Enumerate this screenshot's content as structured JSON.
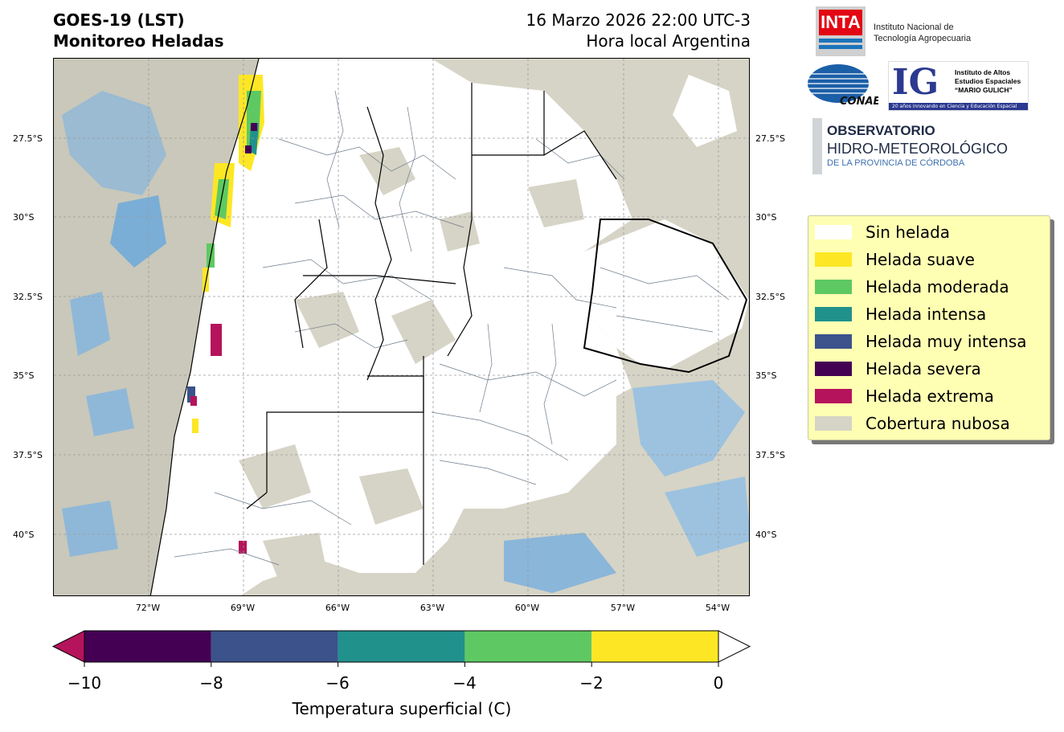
{
  "header": {
    "left_line1": "GOES-19 (LST)",
    "left_line2": "Monitoreo Heladas",
    "right_line1": "16 Marzo 2026 22:00 UTC-3",
    "right_line2": "Hora local Argentina"
  },
  "map": {
    "lat_ticks": [
      "27.5°S",
      "30°S",
      "32.5°S",
      "35°S",
      "37.5°S",
      "40°S"
    ],
    "lon_ticks": [
      "72°W",
      "69°W",
      "66°W",
      "63°W",
      "60°W",
      "57°W",
      "54°W"
    ]
  },
  "logos": {
    "inta_mark": "INTA",
    "inta_name_1": "Instituto Nacional de",
    "inta_name_2": "Tecnología Agropecuaria",
    "conae_mark": "CONAE",
    "ig_mark": "IG",
    "ig_text_1": "Instituto de Altos",
    "ig_text_2": "Estudios Espaciales",
    "ig_text_3": "“MARIO GULICH”",
    "ig_strip": "20 años innovando en Ciencia y Educación Espacial",
    "obs_1": "OBSERVATORIO",
    "obs_2": "HIDRO-METEOROLÓGICO",
    "obs_3": "DE LA PROVINCIA DE CÓRDOBA"
  },
  "legend": [
    {
      "label": "Sin helada",
      "color": "#ffffff"
    },
    {
      "label": "Helada suave",
      "color": "#fde725"
    },
    {
      "label": "Helada moderada",
      "color": "#5ec962"
    },
    {
      "label": "Helada intensa",
      "color": "#21918c"
    },
    {
      "label": "Helada muy intensa",
      "color": "#3b528b"
    },
    {
      "label": "Helada severa",
      "color": "#440154"
    },
    {
      "label": "Helada extrema",
      "color": "#b5135b"
    },
    {
      "label": "Cobertura nubosa",
      "color": "#d6d4c6"
    }
  ],
  "colorbar": {
    "label": "Temperatura superficial (C)",
    "ticks": [
      "−10",
      "−8",
      "−6",
      "−4",
      "−2",
      "0"
    ],
    "bins": [
      {
        "from": -10,
        "to": -8,
        "color": "#440154"
      },
      {
        "from": -8,
        "to": -6,
        "color": "#3b528b"
      },
      {
        "from": -6,
        "to": -4,
        "color": "#21918c"
      },
      {
        "from": -4,
        "to": -2,
        "color": "#5ec962"
      },
      {
        "from": -2,
        "to": 0,
        "color": "#fde725"
      }
    ],
    "under_color": "#b5135b",
    "over_color": "#ffffff"
  }
}
